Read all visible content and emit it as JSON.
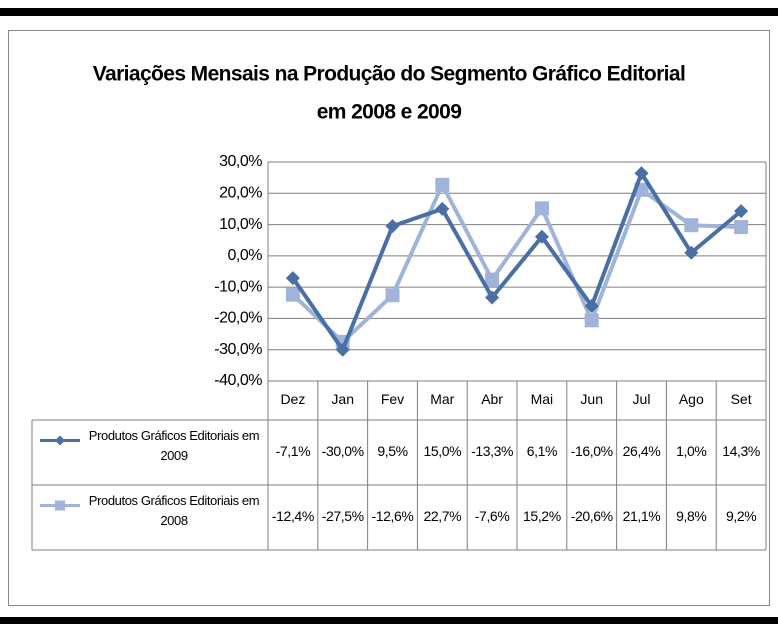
{
  "chart_data": {
    "type": "line",
    "title": [
      "Variações Mensais na Produção do Segmento Gráfico Editorial",
      "em 2008 e 2009"
    ],
    "categories": [
      "Dez",
      "Jan",
      "Fev",
      "Mar",
      "Abr",
      "Mai",
      "Jun",
      "Jul",
      "Ago",
      "Set"
    ],
    "series": [
      {
        "name": "Produtos Gráficos Editoriais em 2009",
        "color": "#4a6fa5",
        "marker": "diamond",
        "values": [
          -7.1,
          -30.0,
          9.5,
          15.0,
          -13.3,
          6.1,
          -16.0,
          26.4,
          1.0,
          14.3
        ],
        "value_labels": [
          "-7,1%",
          "-30,0%",
          "9,5%",
          "15,0%",
          "-13,3%",
          "6,1%",
          "-16,0%",
          "26,4%",
          "1,0%",
          "14,3%"
        ]
      },
      {
        "name": "Produtos Gráficos Editoriais em 2008",
        "color": "#9fb4d8",
        "marker": "square",
        "values": [
          -12.4,
          -27.5,
          -12.6,
          22.7,
          -7.6,
          15.2,
          -20.6,
          21.1,
          9.8,
          9.2
        ],
        "value_labels": [
          "-12,4%",
          "-27,5%",
          "-12,6%",
          "22,7%",
          "-7,6%",
          "15,2%",
          "-20,6%",
          "21,1%",
          "9,8%",
          "9,2%"
        ]
      }
    ],
    "ylim": [
      -40,
      30
    ],
    "yticks": [
      {
        "value": 30,
        "label": "30,0%"
      },
      {
        "value": 20,
        "label": "20,0%"
      },
      {
        "value": 10,
        "label": "10,0%"
      },
      {
        "value": 0,
        "label": "0,0%"
      },
      {
        "value": -10,
        "label": "-10,0%"
      },
      {
        "value": -20,
        "label": "-20,0%"
      },
      {
        "value": -30,
        "label": "-30,0%"
      },
      {
        "value": -40,
        "label": "-40,0%"
      }
    ],
    "grid": true,
    "legend": "table"
  }
}
